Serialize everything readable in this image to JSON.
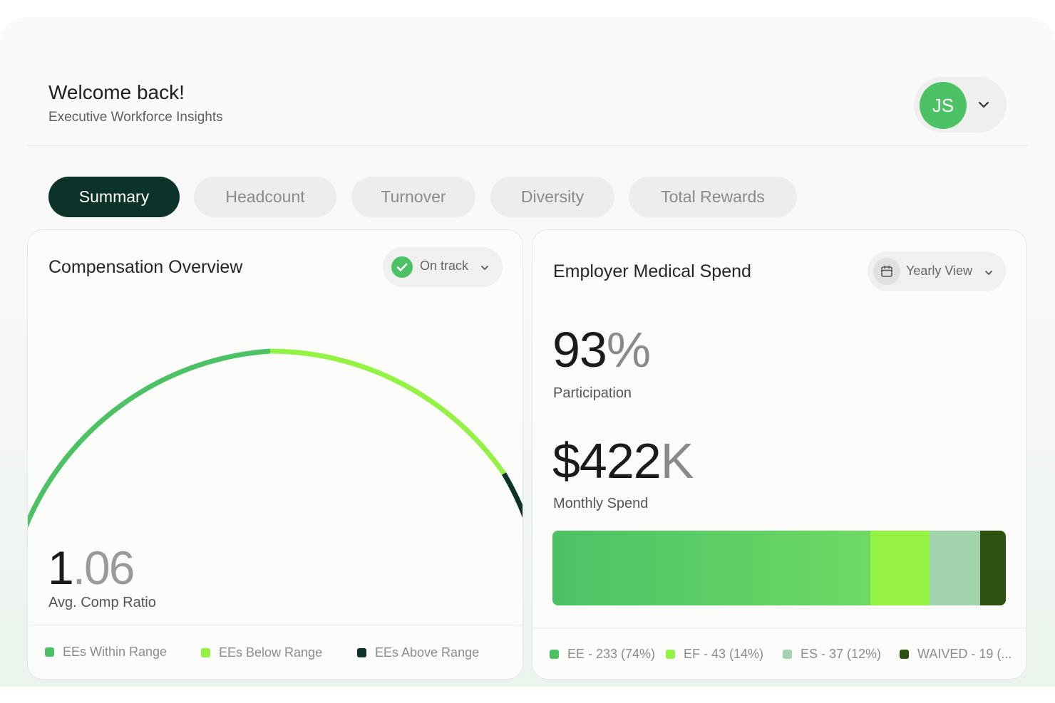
{
  "header": {
    "welcome": "Welcome back!",
    "subtitle": "Executive Workforce Insights",
    "user_initials": "JS",
    "avatar_color": "#4cc265"
  },
  "tabs": [
    {
      "label": "Summary",
      "active": true
    },
    {
      "label": "Headcount",
      "active": false
    },
    {
      "label": "Turnover",
      "active": false
    },
    {
      "label": "Diversity",
      "active": false
    },
    {
      "label": "Total Rewards",
      "active": false
    }
  ],
  "compensation": {
    "title": "Compensation Overview",
    "status_label": "On track",
    "ratio_int": "1",
    "ratio_dec": ".06",
    "ratio_label": "Avg. Comp Ratio",
    "legend": [
      {
        "label": "EEs Within Range",
        "color": "#4cc265"
      },
      {
        "label": "EEs Below Range",
        "color": "#94f244"
      },
      {
        "label": "EEs Above Range",
        "color": "#0b3329"
      }
    ]
  },
  "medical": {
    "title": "Employer Medical Spend",
    "view_label": "Yearly View",
    "participation_value": "93",
    "participation_suffix": "%",
    "participation_label": "Participation",
    "spend_value": "$422",
    "spend_suffix": "K",
    "spend_label": "Monthly Spend",
    "breakdown": [
      {
        "label": "EE - 233 (74%)",
        "count": 233,
        "percent": 74,
        "color": "#4cc265"
      },
      {
        "label": "EF - 43 (14%)",
        "count": 43,
        "percent": 14,
        "color": "#94f244"
      },
      {
        "label": "ES - 37 (12%)",
        "count": 37,
        "percent": 12,
        "color": "#a1d3ad"
      },
      {
        "label": "WAIVED - 19 (...",
        "count": 19,
        "color": "#2c520e"
      }
    ]
  }
}
